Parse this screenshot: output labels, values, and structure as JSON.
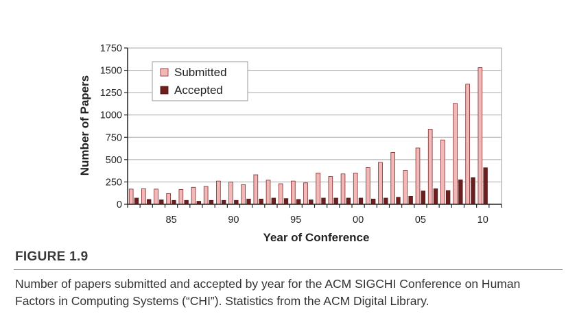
{
  "chart_data": {
    "type": "bar",
    "xlabel": "Year of Conference",
    "ylabel": "Number of Papers",
    "ylim": [
      0,
      1750
    ],
    "yticks": [
      0,
      250,
      500,
      750,
      1000,
      1250,
      1500,
      1750
    ],
    "x_tick_labels": [
      {
        "year": 1985,
        "label": "85"
      },
      {
        "year": 1990,
        "label": "90"
      },
      {
        "year": 1995,
        "label": "95"
      },
      {
        "year": 2000,
        "label": "00"
      },
      {
        "year": 2005,
        "label": "05"
      },
      {
        "year": 2010,
        "label": "10"
      }
    ],
    "x": [
      1982,
      1983,
      1984,
      1985,
      1986,
      1987,
      1988,
      1989,
      1990,
      1991,
      1992,
      1993,
      1994,
      1995,
      1996,
      1997,
      1998,
      1999,
      2000,
      2001,
      2002,
      2003,
      2004,
      2005,
      2006,
      2007,
      2008,
      2009,
      2010,
      2011
    ],
    "grid": "horizontal",
    "legend_position": "top-left",
    "series": [
      {
        "name": "Submitted",
        "color": "#f2b8b8",
        "values": [
          170,
          175,
          170,
          120,
          165,
          190,
          200,
          260,
          250,
          220,
          330,
          270,
          230,
          260,
          240,
          350,
          310,
          340,
          350,
          410,
          470,
          580,
          380,
          630,
          840,
          720,
          1130,
          1345,
          1530,
          0
        ]
      },
      {
        "name": "Accepted",
        "color": "#6b1f1f",
        "values": [
          70,
          55,
          50,
          45,
          45,
          35,
          45,
          45,
          45,
          60,
          60,
          70,
          65,
          55,
          50,
          70,
          70,
          70,
          70,
          60,
          70,
          80,
          90,
          150,
          175,
          155,
          275,
          300,
          410,
          0
        ]
      }
    ]
  },
  "figure": {
    "label": "FIGURE 1.9",
    "caption": "Number of papers submitted and accepted by year for the ACM SIGCHI Conference on Human Factors in Computing Systems (“CHI”). Statistics from the ACM Digital Library."
  }
}
